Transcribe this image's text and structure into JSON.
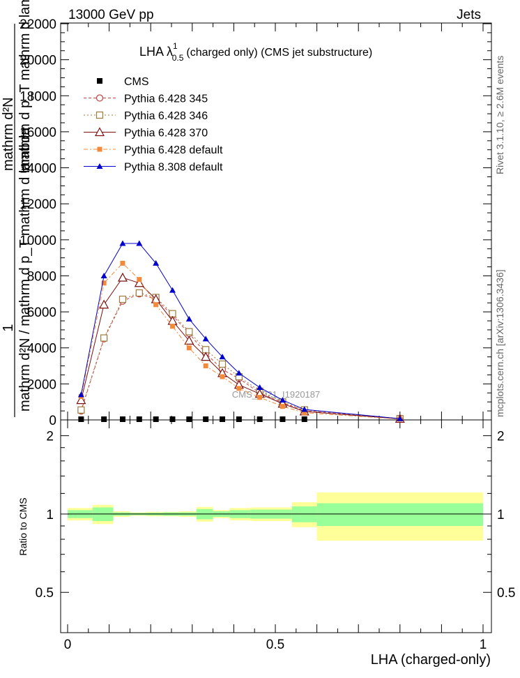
{
  "header": {
    "left": "13000 GeV pp",
    "right": "Jets"
  },
  "side": {
    "rivet": "Rivet 3.1.10, ≥ 2.6M events",
    "mcplots": "mcplots.cern.ch [arXiv:1306.3436]"
  },
  "watermark": "CMS_2021_I1920187",
  "chart_data": {
    "type": "line",
    "title": "LHA λ",
    "title_sup": "1",
    "title_sub": "0.5",
    "title_suffix": "(charged only) (CMS jet substructure)",
    "ylabel_num": "1",
    "ylabel_den": "mathrm d²N / mathrm d p_T mathrm d lambda",
    "ylabel_top": "mathrm d²N",
    "ylabel_top2": "mathrm d p_T mathrm d lambda",
    "xlabel": "LHA (charged-only)",
    "xlim": [
      0,
      1
    ],
    "ylim": [
      0,
      22000
    ],
    "y_ticks": [
      "0",
      "2000",
      "4000",
      "6000",
      "8000",
      "10000",
      "12000",
      "14000",
      "16000",
      "18000",
      "20000",
      "22000"
    ],
    "x_ticks": [
      "0",
      "0.5",
      "1"
    ],
    "x": [
      0.0325,
      0.0875,
      0.1325,
      0.1725,
      0.2125,
      0.2525,
      0.2925,
      0.3325,
      0.3725,
      0.4125,
      0.4625,
      0.5175,
      0.57,
      0.8
    ],
    "cms_y": [
      0,
      0,
      0,
      0,
      0,
      0,
      0,
      0,
      0,
      0,
      0,
      0,
      0,
      0
    ],
    "series": [
      {
        "name": "CMS",
        "style": "cms",
        "color": "#000000",
        "values": [
          0,
          0,
          0,
          0,
          0,
          0,
          0,
          0,
          0,
          0,
          0,
          0,
          0,
          0
        ]
      },
      {
        "name": "Pythia 6.428 345",
        "style": "circle",
        "color": "#c44040",
        "dash": "4,3",
        "values": [
          500,
          4500,
          6600,
          7000,
          6700,
          5800,
          4800,
          3700,
          2800,
          2300,
          1500,
          950,
          520,
          70
        ]
      },
      {
        "name": "Pythia 6.428 346",
        "style": "square-open",
        "color": "#9c7b3a",
        "dash": "2,3",
        "values": [
          550,
          4550,
          6700,
          7050,
          6800,
          5900,
          4900,
          3900,
          3100,
          2400,
          1600,
          1000,
          560,
          75
        ]
      },
      {
        "name": "Pythia 6.428 370",
        "style": "triangle-open",
        "color": "#7a1010",
        "dash": "",
        "values": [
          1100,
          6400,
          7900,
          7600,
          6700,
          5500,
          4400,
          3500,
          2600,
          1950,
          1450,
          900,
          470,
          60
        ]
      },
      {
        "name": "Pythia 6.428 default",
        "style": "square-filled",
        "color": "#f28a3c",
        "dash": "6,3,2,3",
        "values": [
          1300,
          7600,
          8700,
          7800,
          6400,
          5200,
          4000,
          3000,
          2400,
          1750,
          1250,
          750,
          400,
          45
        ]
      },
      {
        "name": "Pythia 8.308 default",
        "style": "triangle-filled",
        "color": "#0000cc",
        "dash": "",
        "values": [
          1400,
          8000,
          9800,
          9800,
          8700,
          7200,
          5600,
          4500,
          3500,
          2600,
          1800,
          1100,
          580,
          70
        ]
      }
    ],
    "ratio": {
      "ylabel": "Ratio to CMS",
      "ylim": [
        0.35,
        2.3
      ],
      "y_ticks": [
        "0.5",
        "1",
        "2"
      ],
      "y_tick_values": [
        0.5,
        1,
        2
      ],
      "bins": [
        {
          "lo": 0.0,
          "hi": 0.06,
          "stat": 0.035,
          "tot": 0.055
        },
        {
          "lo": 0.06,
          "hi": 0.11,
          "stat": 0.06,
          "tot": 0.085
        },
        {
          "lo": 0.11,
          "hi": 0.15,
          "stat": 0.015,
          "tot": 0.025
        },
        {
          "lo": 0.15,
          "hi": 0.19,
          "stat": 0.01,
          "tot": 0.015
        },
        {
          "lo": 0.19,
          "hi": 0.23,
          "stat": 0.012,
          "tot": 0.02
        },
        {
          "lo": 0.23,
          "hi": 0.27,
          "stat": 0.015,
          "tot": 0.02
        },
        {
          "lo": 0.27,
          "hi": 0.31,
          "stat": 0.015,
          "tot": 0.025
        },
        {
          "lo": 0.31,
          "hi": 0.35,
          "stat": 0.045,
          "tot": 0.065
        },
        {
          "lo": 0.35,
          "hi": 0.39,
          "stat": 0.025,
          "tot": 0.035
        },
        {
          "lo": 0.39,
          "hi": 0.44,
          "stat": 0.035,
          "tot": 0.055
        },
        {
          "lo": 0.44,
          "hi": 0.49,
          "stat": 0.04,
          "tot": 0.06
        },
        {
          "lo": 0.49,
          "hi": 0.54,
          "stat": 0.04,
          "tot": 0.06
        },
        {
          "lo": 0.54,
          "hi": 0.6,
          "stat": 0.07,
          "tot": 0.11
        },
        {
          "lo": 0.6,
          "hi": 1.0,
          "stat": 0.1,
          "tot": 0.21
        }
      ]
    }
  }
}
